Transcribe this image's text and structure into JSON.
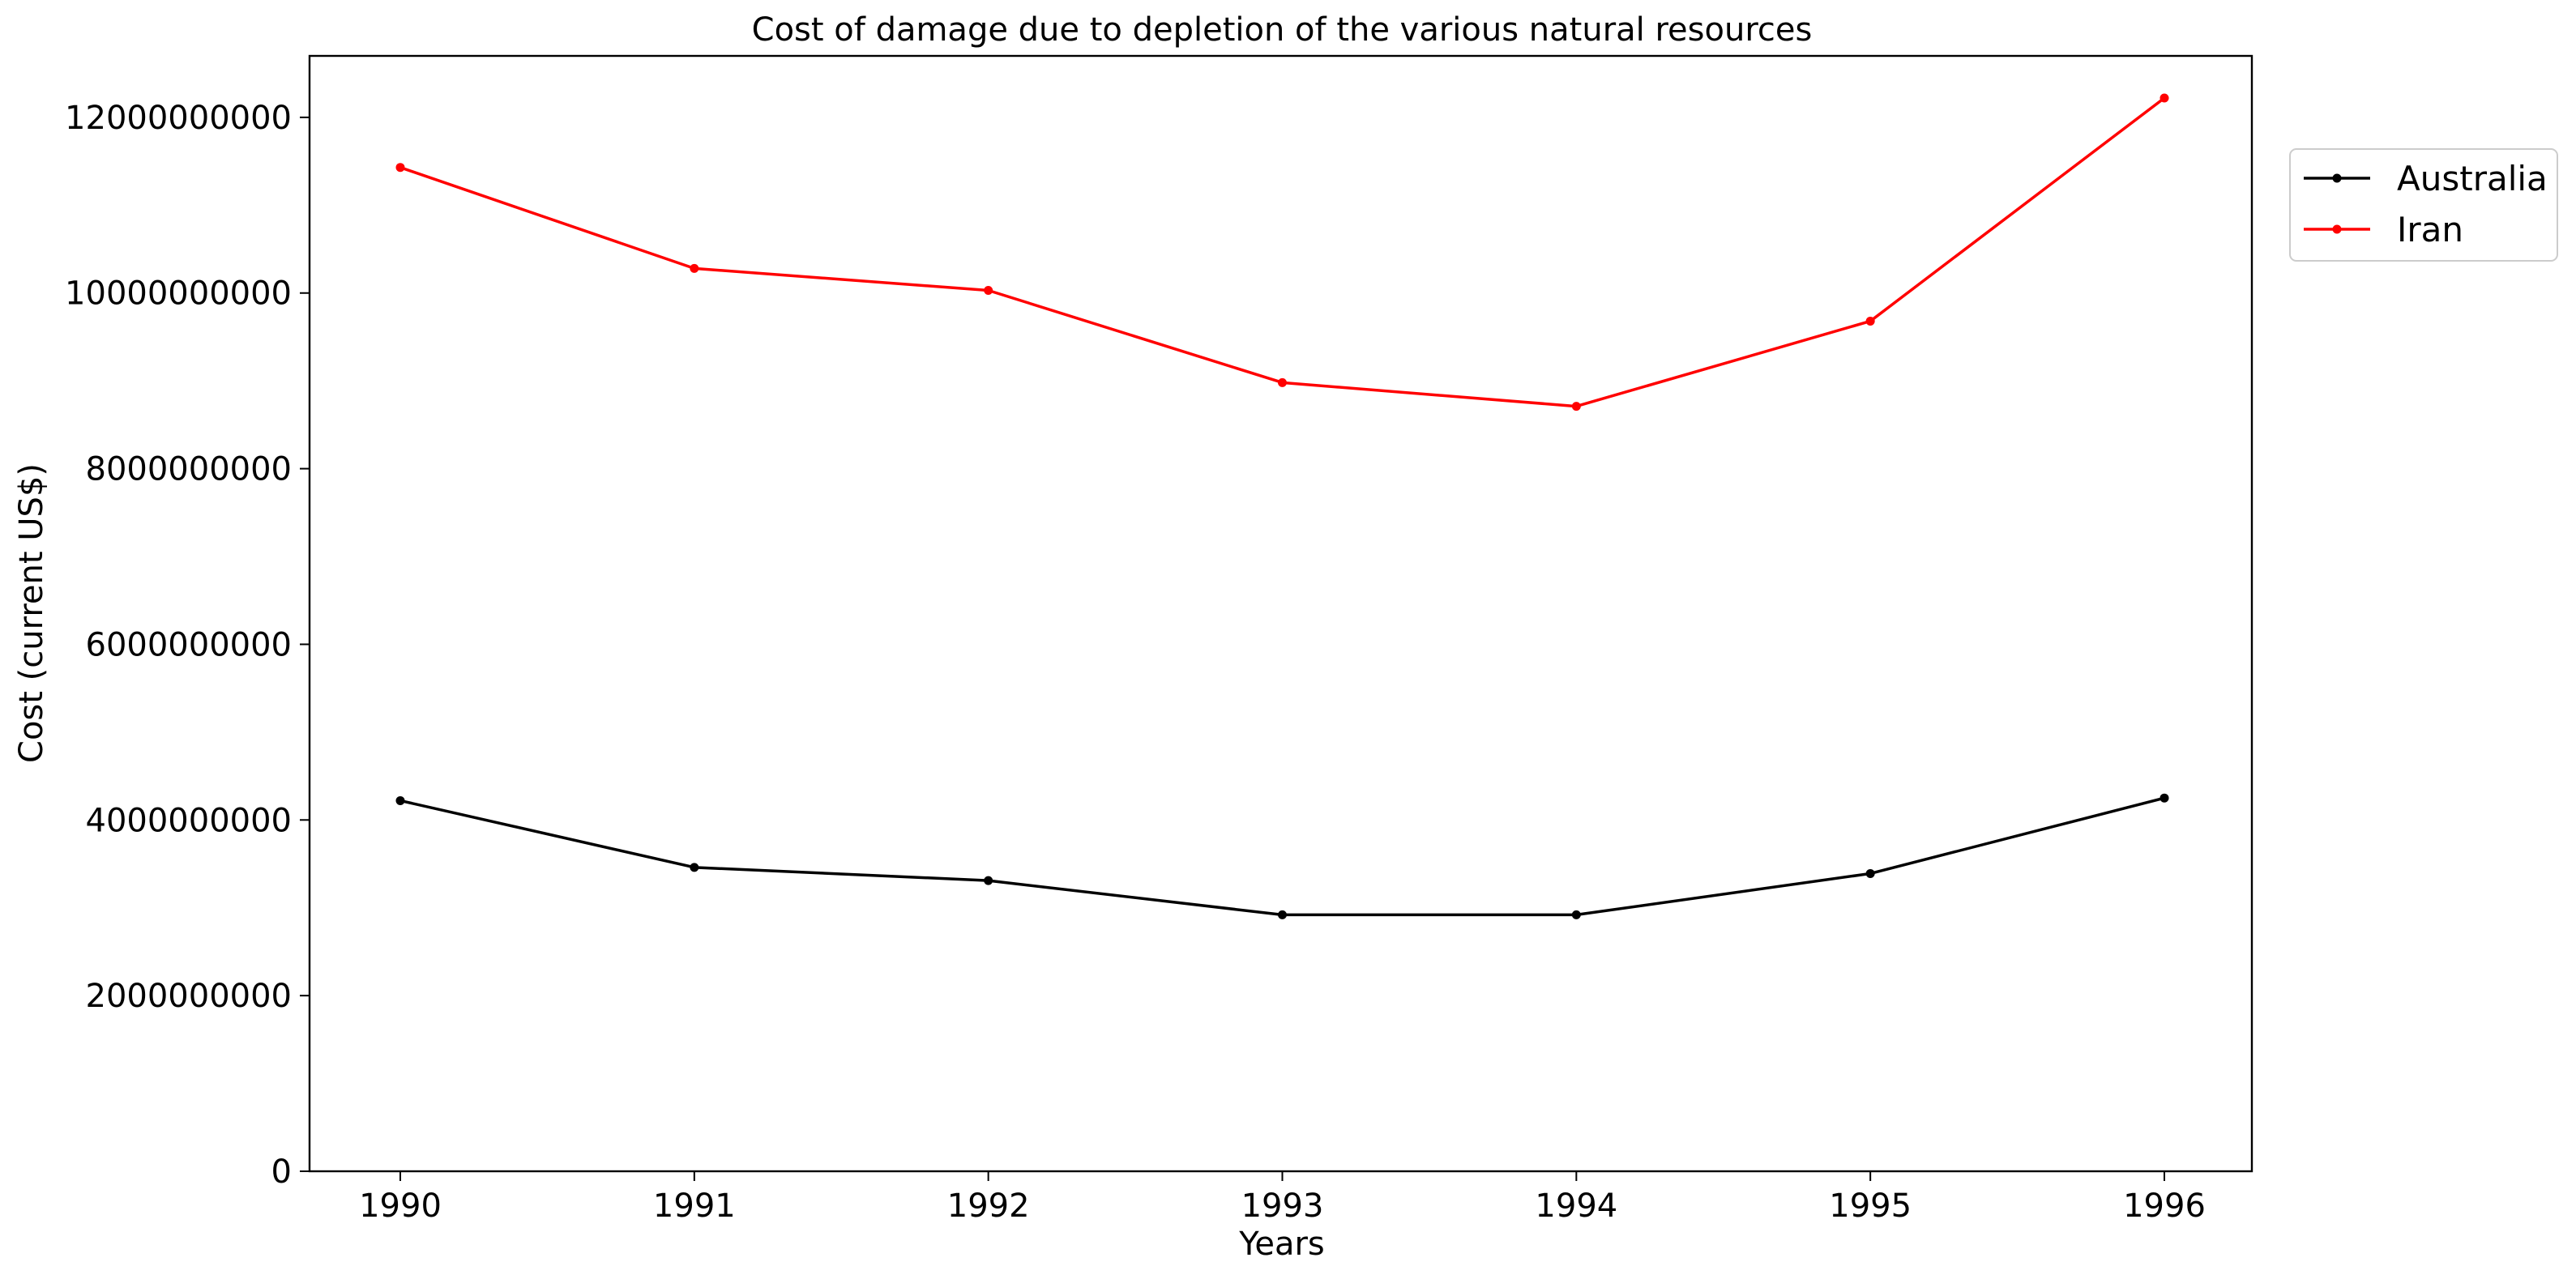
{
  "chart_data": {
    "type": "line",
    "title": "Cost of damage due to depletion of the various natural resources",
    "xlabel": "Years",
    "ylabel": "Cost (current US$)",
    "x": [
      "1990",
      "1991",
      "1992",
      "1993",
      "1994",
      "1995",
      "1996"
    ],
    "ylim": [
      0,
      12700000000
    ],
    "yticks": [
      "0",
      "2000000000",
      "4000000000",
      "6000000000",
      "8000000000",
      "10000000000",
      "12000000000"
    ],
    "grid": false,
    "legend_position": "upper right, outside plot",
    "series": [
      {
        "name": "Australia",
        "color": "#000000",
        "values": [
          4220000000,
          3460000000,
          3310000000,
          2920000000,
          2920000000,
          3390000000,
          4250000000
        ]
      },
      {
        "name": "Iran",
        "color": "#ff0000",
        "values": [
          11430000000,
          10280000000,
          10030000000,
          8980000000,
          8710000000,
          9680000000,
          12220000000
        ]
      }
    ]
  }
}
